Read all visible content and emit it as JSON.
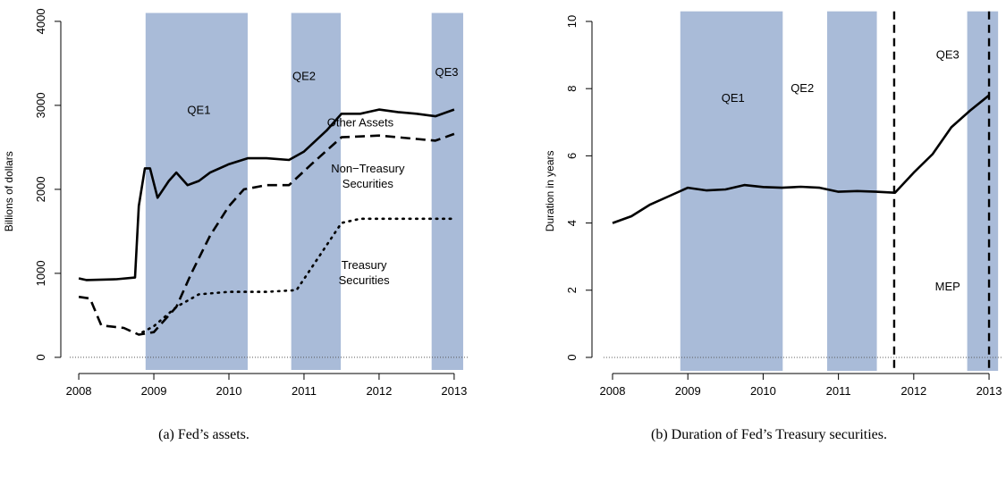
{
  "chart_data": [
    {
      "type": "line",
      "ylabel": "Billions of dollars",
      "caption": "(a) Fed’s assets.",
      "xlim": [
        2007.88,
        2013.18
      ],
      "xticks": [
        2008,
        2009,
        2010,
        2011,
        2012,
        2013
      ],
      "ylim": [
        -150,
        4100
      ],
      "yticks": [
        0,
        1000,
        2000,
        3000,
        4000
      ],
      "zero_line": true,
      "shaded": [
        {
          "label": "QE1",
          "start": 2008.89,
          "end": 2010.25
        },
        {
          "label": "QE2",
          "start": 2010.83,
          "end": 2011.49
        },
        {
          "label": "QE3",
          "start": 2012.7,
          "end": 2013.12
        }
      ],
      "shade_color": "#a9bbd8",
      "annotations": [
        {
          "lines": [
            "Other Assets"
          ]
        },
        {
          "lines": [
            "Non−Treasury",
            "Securities"
          ]
        },
        {
          "lines": [
            "Treasury",
            "Securities"
          ]
        }
      ],
      "series": [
        {
          "color": "#000000",
          "linestyle": "solid",
          "x": [
            2008.0,
            2008.1,
            2008.5,
            2008.75,
            2008.8,
            2008.88,
            2008.95,
            2009.05,
            2009.2,
            2009.3,
            2009.45,
            2009.6,
            2009.75,
            2010.0,
            2010.25,
            2010.5,
            2010.8,
            2011.0,
            2011.3,
            2011.5,
            2011.75,
            2012.0,
            2012.25,
            2012.5,
            2012.75,
            2013.0
          ],
          "values": [
            940,
            920,
            930,
            950,
            1800,
            2250,
            2250,
            1900,
            2100,
            2200,
            2050,
            2100,
            2200,
            2300,
            2370,
            2370,
            2350,
            2450,
            2700,
            2900,
            2900,
            2950,
            2920,
            2900,
            2870,
            2950
          ]
        },
        {
          "color": "#000000",
          "linestyle": "dashed",
          "x": [
            2008.0,
            2008.15,
            2008.3,
            2008.6,
            2008.8,
            2009.0,
            2009.3,
            2009.5,
            2009.75,
            2010.0,
            2010.2,
            2010.5,
            2010.8,
            2011.1,
            2011.5,
            2012.0,
            2012.5,
            2012.75,
            2013.0
          ],
          "values": [
            720,
            700,
            380,
            350,
            270,
            300,
            600,
            1000,
            1450,
            1800,
            2000,
            2050,
            2050,
            2300,
            2620,
            2640,
            2600,
            2580,
            2660
          ]
        },
        {
          "color": "#000000",
          "linestyle": "dotted",
          "x": [
            2008.85,
            2009.0,
            2009.3,
            2009.6,
            2010.0,
            2010.5,
            2010.9,
            2011.2,
            2011.5,
            2011.75,
            2012.5,
            2013.0
          ],
          "values": [
            300,
            370,
            600,
            750,
            780,
            780,
            800,
            1200,
            1600,
            1650,
            1650,
            1650
          ]
        }
      ]
    },
    {
      "type": "line",
      "ylabel": "Duration in years",
      "caption": "(b) Duration of Fed’s Treasury securities.",
      "xlim": [
        2007.88,
        2013.18
      ],
      "xticks": [
        2008,
        2009,
        2010,
        2011,
        2012,
        2013
      ],
      "ylim": [
        -0.4,
        10.3
      ],
      "yticks": [
        0,
        2,
        4,
        6,
        8,
        10
      ],
      "zero_line": true,
      "shaded": [
        {
          "label": "QE1",
          "start": 2008.9,
          "end": 2010.26
        },
        {
          "label": "QE2",
          "start": 2010.85,
          "end": 2011.51
        },
        {
          "label": "QE3",
          "start": 2012.71,
          "end": 2013.12
        }
      ],
      "shade_color": "#a9bbd8",
      "vlines": [
        2011.74,
        2013.0
      ],
      "annotations": [
        {
          "lines": [
            "MEP"
          ]
        }
      ],
      "series": [
        {
          "color": "#000000",
          "linestyle": "solid",
          "x": [
            2008.0,
            2008.25,
            2008.5,
            2008.75,
            2009.0,
            2009.25,
            2009.5,
            2009.75,
            2010.0,
            2010.25,
            2010.5,
            2010.75,
            2011.0,
            2011.25,
            2011.5,
            2011.75,
            2012.0,
            2012.25,
            2012.5,
            2012.75,
            2013.0
          ],
          "values": [
            4.0,
            4.2,
            4.55,
            4.8,
            5.05,
            4.97,
            5.0,
            5.13,
            5.07,
            5.05,
            5.08,
            5.05,
            4.93,
            4.95,
            4.93,
            4.9,
            5.5,
            6.05,
            6.85,
            7.35,
            7.8
          ]
        }
      ]
    }
  ]
}
